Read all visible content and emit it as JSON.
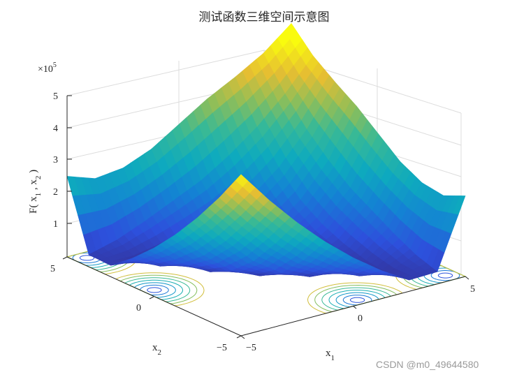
{
  "chart_data": {
    "type": "surface3d",
    "title": "测试函数三维空间示意图",
    "xlabel": "x",
    "xlabel_sub": "1",
    "ylabel": "x",
    "ylabel_sub": "2",
    "zlabel": "F( x",
    "zlabel_sub1": "1",
    "zlabel_mid": " , x",
    "zlabel_sub2": "2",
    "zlabel_end": " )",
    "z_multiplier": "×10",
    "z_multiplier_exp": "5",
    "x_ticks": [
      "−5",
      "0",
      "5"
    ],
    "y_ticks": [
      "−5",
      "0",
      "5"
    ],
    "z_ticks": [
      "1",
      "2",
      "3",
      "4",
      "5"
    ],
    "xlim": [
      -5,
      5
    ],
    "ylim": [
      -5,
      5
    ],
    "zlim": [
      0,
      500000
    ],
    "grid": true,
    "colormap": "parula",
    "contour_projection": true,
    "x_grid": [
      -5,
      -3.75,
      -2.5,
      -1.25,
      0,
      1.25,
      2.5,
      3.75,
      5
    ],
    "y_grid": [
      -5,
      -3.75,
      -2.5,
      -1.25,
      0,
      1.25,
      2.5,
      3.75,
      5
    ],
    "z_values": [
      [
        500000,
        397500,
        305000,
        222500,
        150000,
        87500,
        35000,
        37500,
        250000
      ],
      [
        397500,
        300000,
        210000,
        135000,
        80000,
        40000,
        25000,
        60000,
        220000
      ],
      [
        305000,
        210000,
        125000,
        65000,
        30000,
        22000,
        35000,
        95000,
        230000
      ],
      [
        222500,
        135000,
        65000,
        25000,
        12000,
        18000,
        55000,
        135000,
        265000
      ],
      [
        150000,
        80000,
        30000,
        12000,
        10000,
        30000,
        85000,
        175000,
        320000
      ],
      [
        87500,
        40000,
        22000,
        18000,
        30000,
        65000,
        130000,
        230000,
        375000
      ],
      [
        35000,
        25000,
        35000,
        55000,
        85000,
        130000,
        200000,
        295000,
        420000
      ],
      [
        37500,
        60000,
        95000,
        135000,
        175000,
        230000,
        295000,
        375000,
        470000
      ],
      [
        250000,
        220000,
        230000,
        265000,
        320000,
        375000,
        420000,
        470000,
        540000
      ]
    ]
  },
  "watermark": "CSDN @m0_49644580"
}
